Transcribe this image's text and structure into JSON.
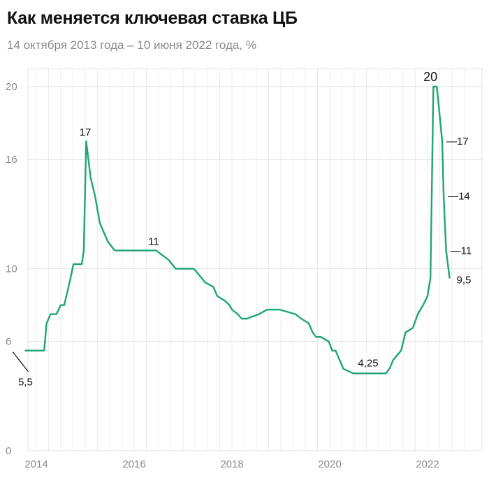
{
  "header": {
    "title": "Как меняется ключевая ставка ЦБ",
    "subtitle": "14 октября 2013 года – 10 июня 2022 года, %"
  },
  "chart_data": {
    "type": "line",
    "title": "Как меняется ключевая ставка ЦБ",
    "subtitle": "14 октября 2013 года – 10 июня 2022 года, %",
    "xlabel": "",
    "ylabel": "",
    "xlim": [
      2013.78,
      2022.5
    ],
    "ylim": [
      0,
      20
    ],
    "y_ticks": [
      0,
      6,
      10,
      16,
      20
    ],
    "x_ticks": [
      2014,
      2016,
      2018,
      2020,
      2022
    ],
    "grid": true,
    "line_color": "#1fa672",
    "series": [
      {
        "x": [
          2013.78,
          2014.13,
          2014.16,
          2014.21,
          2014.29,
          2014.41,
          2014.5,
          2014.57,
          2014.68,
          2014.76,
          2014.93,
          2014.97,
          2015.02,
          2015.11,
          2015.2,
          2015.3,
          2015.46,
          2015.6,
          2016.0,
          2016.45,
          2016.7,
          2016.85,
          2017.22,
          2017.3,
          2017.45,
          2017.62,
          2017.7,
          2017.85,
          2017.95,
          2018.0,
          2018.12,
          2018.2,
          2018.3,
          2018.55,
          2018.72,
          2018.98,
          2019.3,
          2019.42,
          2019.57,
          2019.65,
          2019.72,
          2019.82,
          2019.98,
          2020.05,
          2020.12,
          2020.28,
          2020.48,
          2020.58,
          2020.65,
          2021.15,
          2021.22,
          2021.3,
          2021.46,
          2021.55,
          2021.7,
          2021.8,
          2021.91,
          2022.0,
          2022.06,
          2022.12,
          2022.19,
          2022.3,
          2022.33,
          2022.38,
          2022.45
        ],
        "values": [
          5.5,
          5.5,
          5.5,
          7.0,
          7.5,
          7.5,
          8.0,
          8.0,
          9.25,
          10.25,
          10.25,
          11.0,
          17.0,
          15.0,
          14.0,
          12.5,
          11.5,
          11.0,
          11.0,
          11.0,
          10.5,
          10.0,
          10.0,
          9.75,
          9.25,
          9.0,
          8.5,
          8.25,
          8.0,
          7.75,
          7.5,
          7.25,
          7.25,
          7.5,
          7.75,
          7.75,
          7.5,
          7.25,
          7.0,
          6.5,
          6.25,
          6.25,
          6.0,
          5.5,
          5.5,
          4.5,
          4.25,
          4.25,
          4.25,
          4.25,
          4.5,
          5.0,
          5.5,
          6.5,
          6.75,
          7.5,
          8.0,
          8.5,
          9.5,
          20.0,
          20.0,
          17.0,
          14.0,
          11.0,
          9.5
        ]
      }
    ],
    "annotations": [
      {
        "label": "5,5",
        "x": 2013.92,
        "y": 5.5,
        "style": "leader"
      },
      {
        "label": "17",
        "x": 2015.0,
        "y": 17.0
      },
      {
        "label": "11",
        "x": 2016.4,
        "y": 11.0
      },
      {
        "label": "4,25",
        "x": 2020.9,
        "y": 4.25
      },
      {
        "label": "20",
        "x": 2022.06,
        "y": 20.0,
        "style": "big"
      },
      {
        "label": "17",
        "x": 2022.3,
        "y": 17.0,
        "style": "dash"
      },
      {
        "label": "14",
        "x": 2022.33,
        "y": 14.0,
        "style": "dash"
      },
      {
        "label": "11",
        "x": 2022.38,
        "y": 11.0,
        "style": "dash"
      },
      {
        "label": "9,5",
        "x": 2022.45,
        "y": 9.5
      }
    ]
  }
}
